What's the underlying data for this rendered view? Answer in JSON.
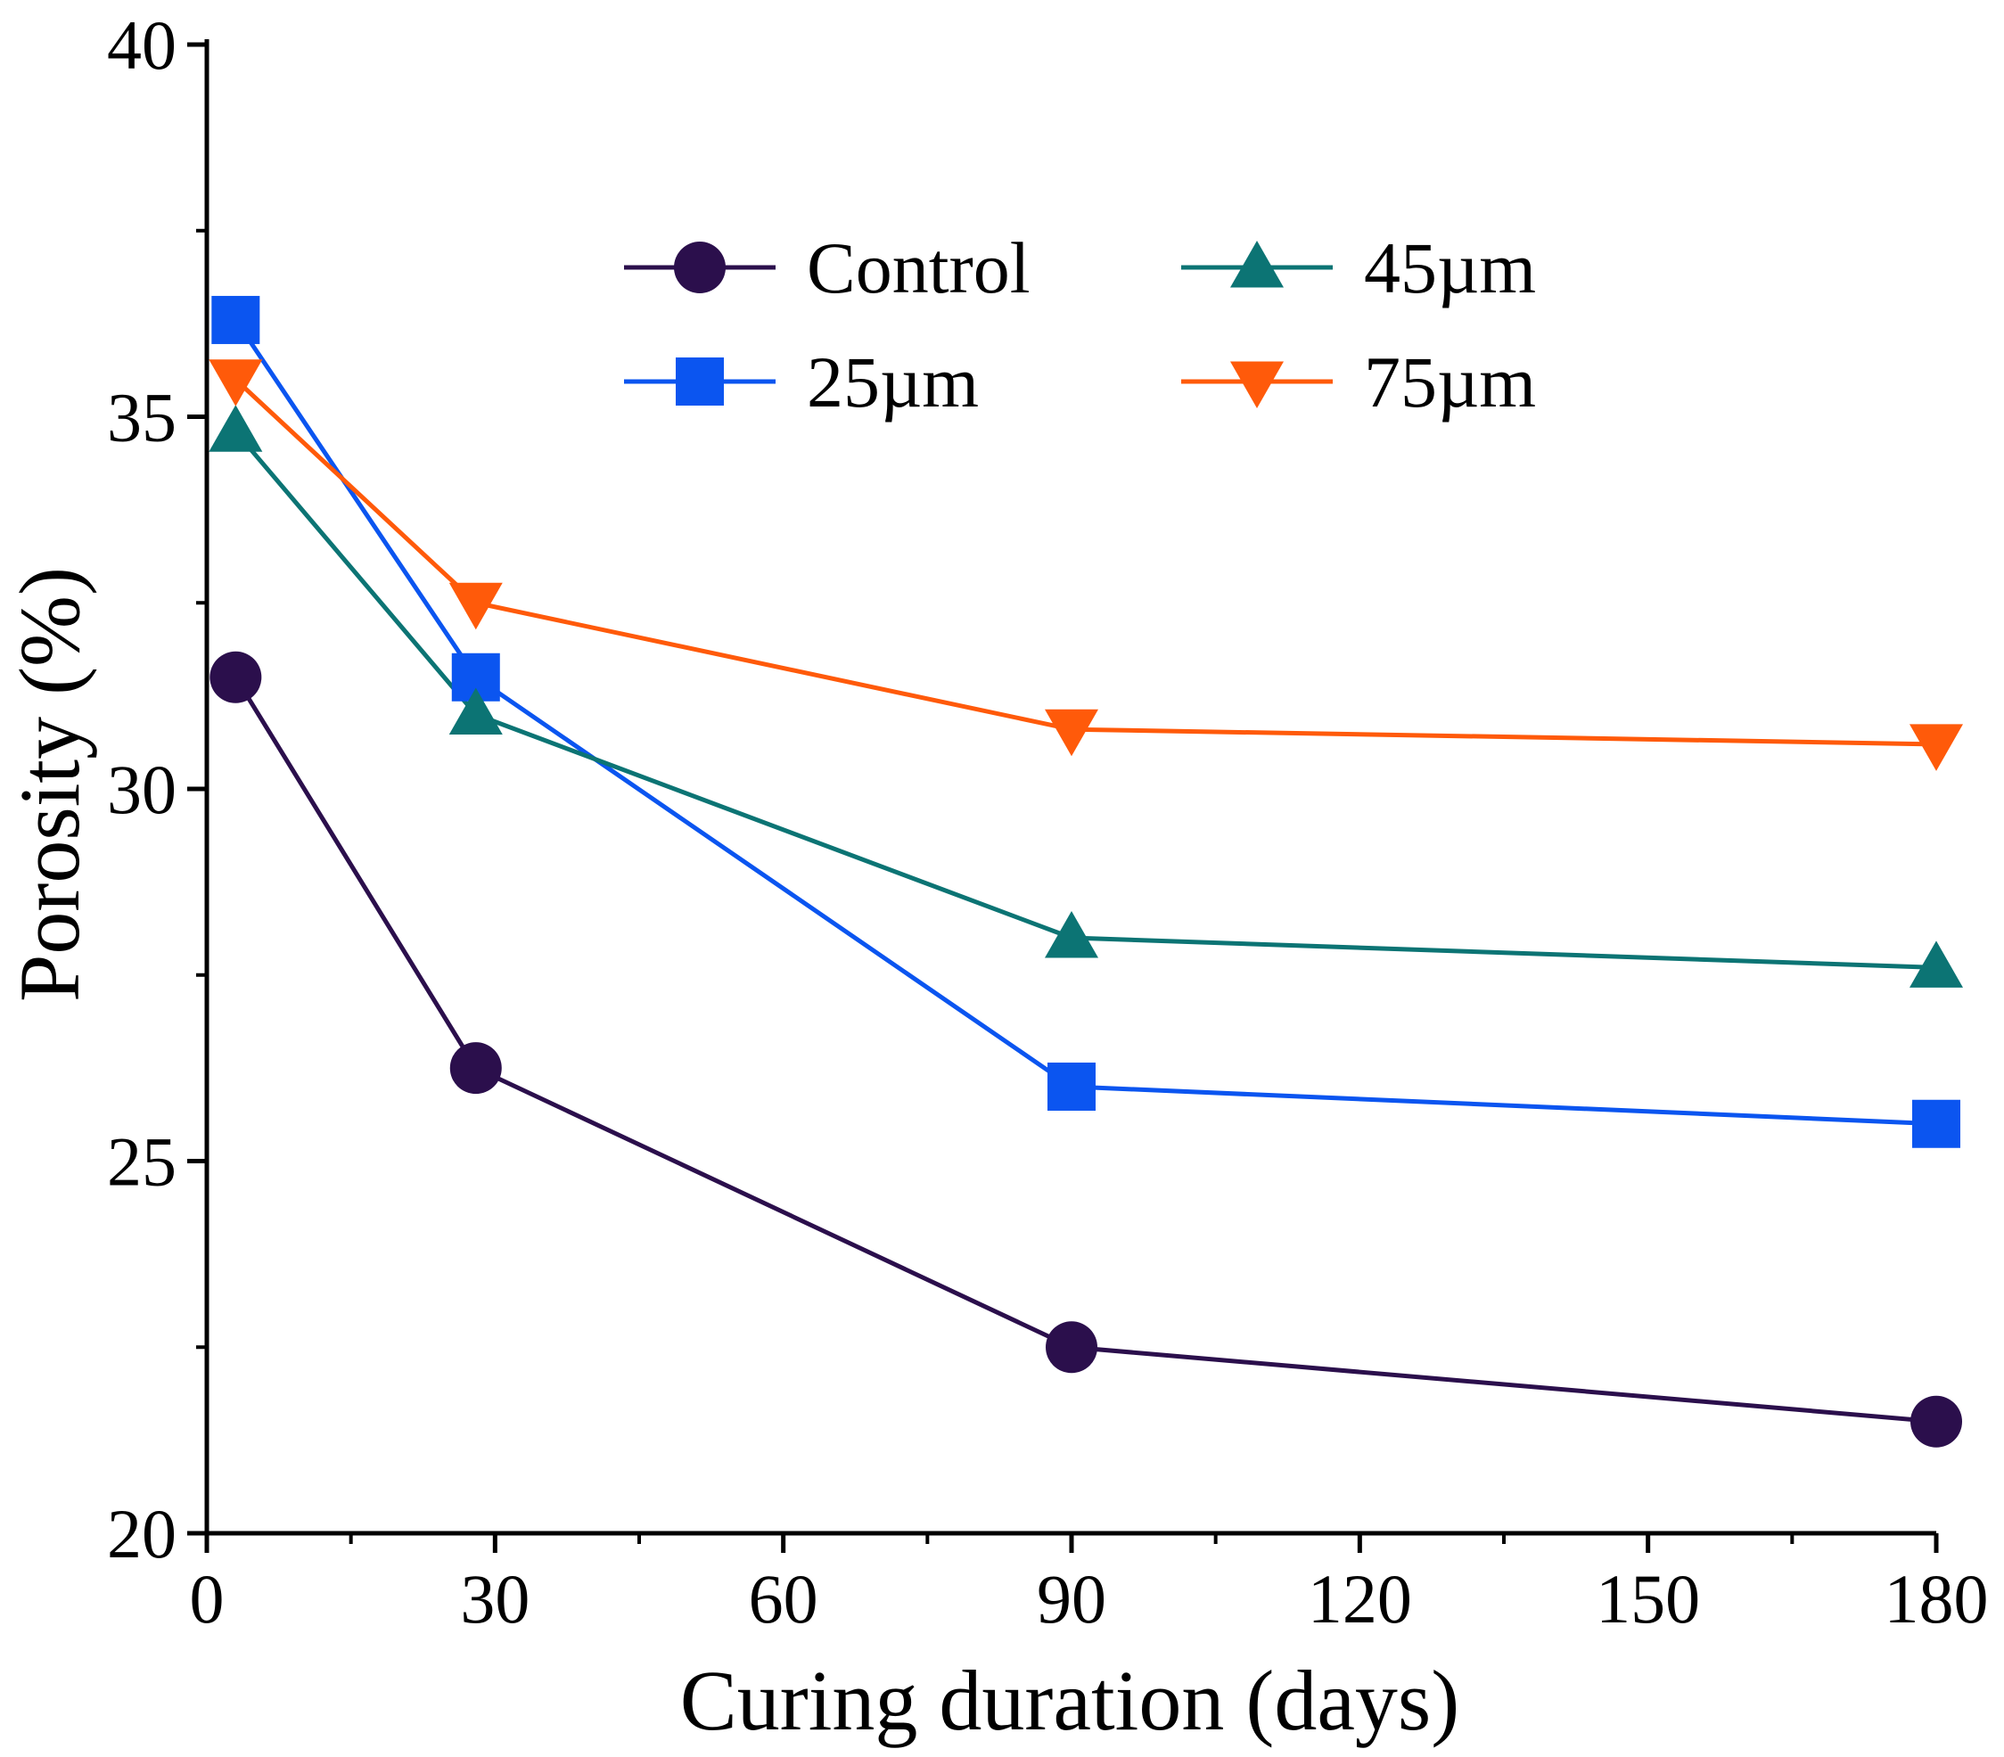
{
  "chart_data": {
    "type": "line",
    "title": "",
    "xlabel": "Curing duration (days)",
    "ylabel": "Porosity (%)",
    "xlim": [
      0,
      180
    ],
    "ylim": [
      20,
      40
    ],
    "xticks": [
      0,
      30,
      60,
      90,
      120,
      150,
      180
    ],
    "yticks": [
      20,
      25,
      30,
      35,
      40
    ],
    "x_tick_labels": [
      "0",
      "30",
      "60",
      "90",
      "120",
      "150",
      "180"
    ],
    "y_tick_labels": [
      "20",
      "25",
      "30",
      "35",
      "40"
    ],
    "x_minor_ticks": [
      15,
      45,
      75,
      105,
      135,
      165
    ],
    "y_minor_ticks": [
      22.5,
      27.5,
      32.5,
      37.5
    ],
    "grid": false,
    "legend": "top-center",
    "x": [
      3,
      28,
      90,
      180
    ],
    "series": [
      {
        "name": "Control",
        "marker": "circle",
        "color": "#2b0f4c",
        "values": [
          31.5,
          26.25,
          22.5,
          21.5
        ]
      },
      {
        "name": "25µm",
        "marker": "square",
        "color": "#0b55f0",
        "values": [
          36.3,
          31.5,
          26.0,
          25.5
        ]
      },
      {
        "name": "45µm",
        "marker": "triangle-up",
        "color": "#0c7474",
        "values": [
          34.8,
          31.0,
          28.0,
          27.6
        ]
      },
      {
        "name": "75µm",
        "marker": "triangle-down",
        "color": "#ff5a0a",
        "values": [
          35.5,
          32.5,
          30.8,
          30.6
        ]
      }
    ]
  }
}
